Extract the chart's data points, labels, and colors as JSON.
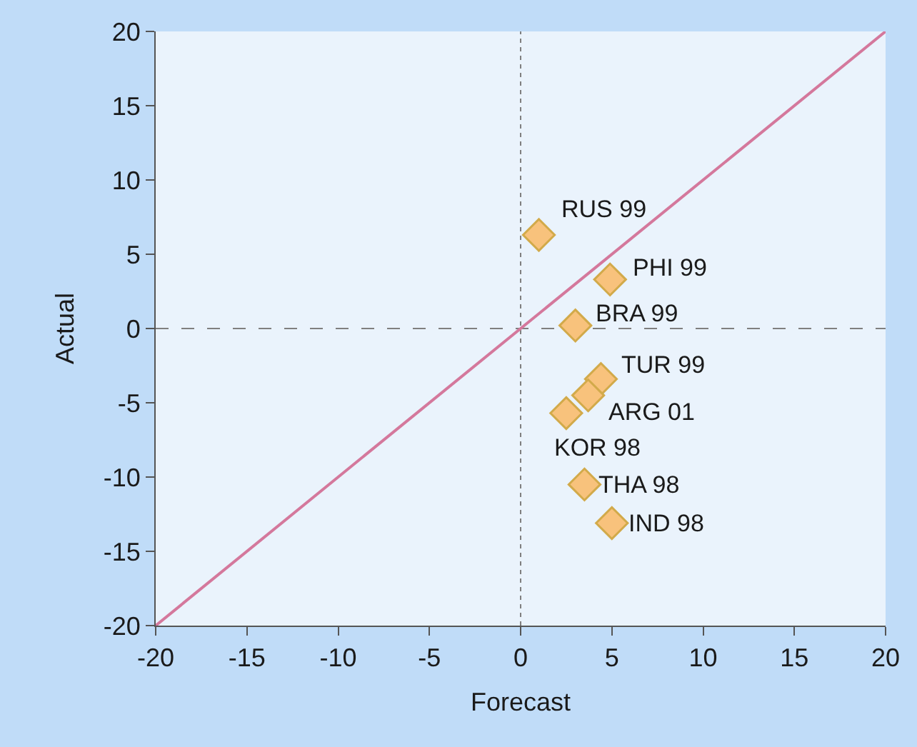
{
  "chart_data": {
    "type": "scatter",
    "xlabel": "Forecast",
    "ylabel": "Actual",
    "xlim": [
      -20,
      20
    ],
    "xticks": [
      -20,
      -15,
      -10,
      -5,
      0,
      5,
      10,
      15,
      20
    ],
    "ylim": [
      -20,
      20
    ],
    "yticks": [
      -20,
      -15,
      -10,
      -5,
      0,
      5,
      10,
      15,
      20
    ],
    "grid": false,
    "series": [
      {
        "type": "line",
        "color": "#d4789c",
        "x": [
          -20,
          20
        ],
        "values": [
          -20,
          20
        ],
        "marker": "none",
        "line_style": "solid"
      },
      {
        "color": "#f8c27c",
        "x": [
          1.0,
          4.9,
          3.0,
          4.4,
          3.7,
          2.5,
          3.5,
          5.0
        ],
        "values": [
          6.3,
          3.3,
          0.2,
          -3.4,
          -4.5,
          -5.7,
          -10.5,
          -13.1
        ],
        "marker": "diamond"
      }
    ],
    "ref_lines": [
      {
        "axis": "x",
        "value": 0,
        "color": "#7f7f7f",
        "line_style": "dotted"
      },
      {
        "axis": "y",
        "value": 0,
        "color": "#7f7f7f",
        "line_style": "dashed"
      }
    ],
    "annotations": [
      {
        "text": "RUS 99",
        "x": 1.0,
        "y": 6.3
      },
      {
        "text": "PHI 99",
        "x": 4.9,
        "y": 3.3
      },
      {
        "text": "BRA 99",
        "x": 3.0,
        "y": 0.2
      },
      {
        "text": "TUR 99",
        "x": 4.4,
        "y": -3.4
      },
      {
        "text": "ARG 01",
        "x": 3.7,
        "y": -4.5
      },
      {
        "text": "KOR 98",
        "x": 2.5,
        "y": -5.7
      },
      {
        "text": "THA 98",
        "x": 3.5,
        "y": -10.5
      },
      {
        "text": "IND 98",
        "x": 5.0,
        "y": -13.1
      }
    ]
  }
}
